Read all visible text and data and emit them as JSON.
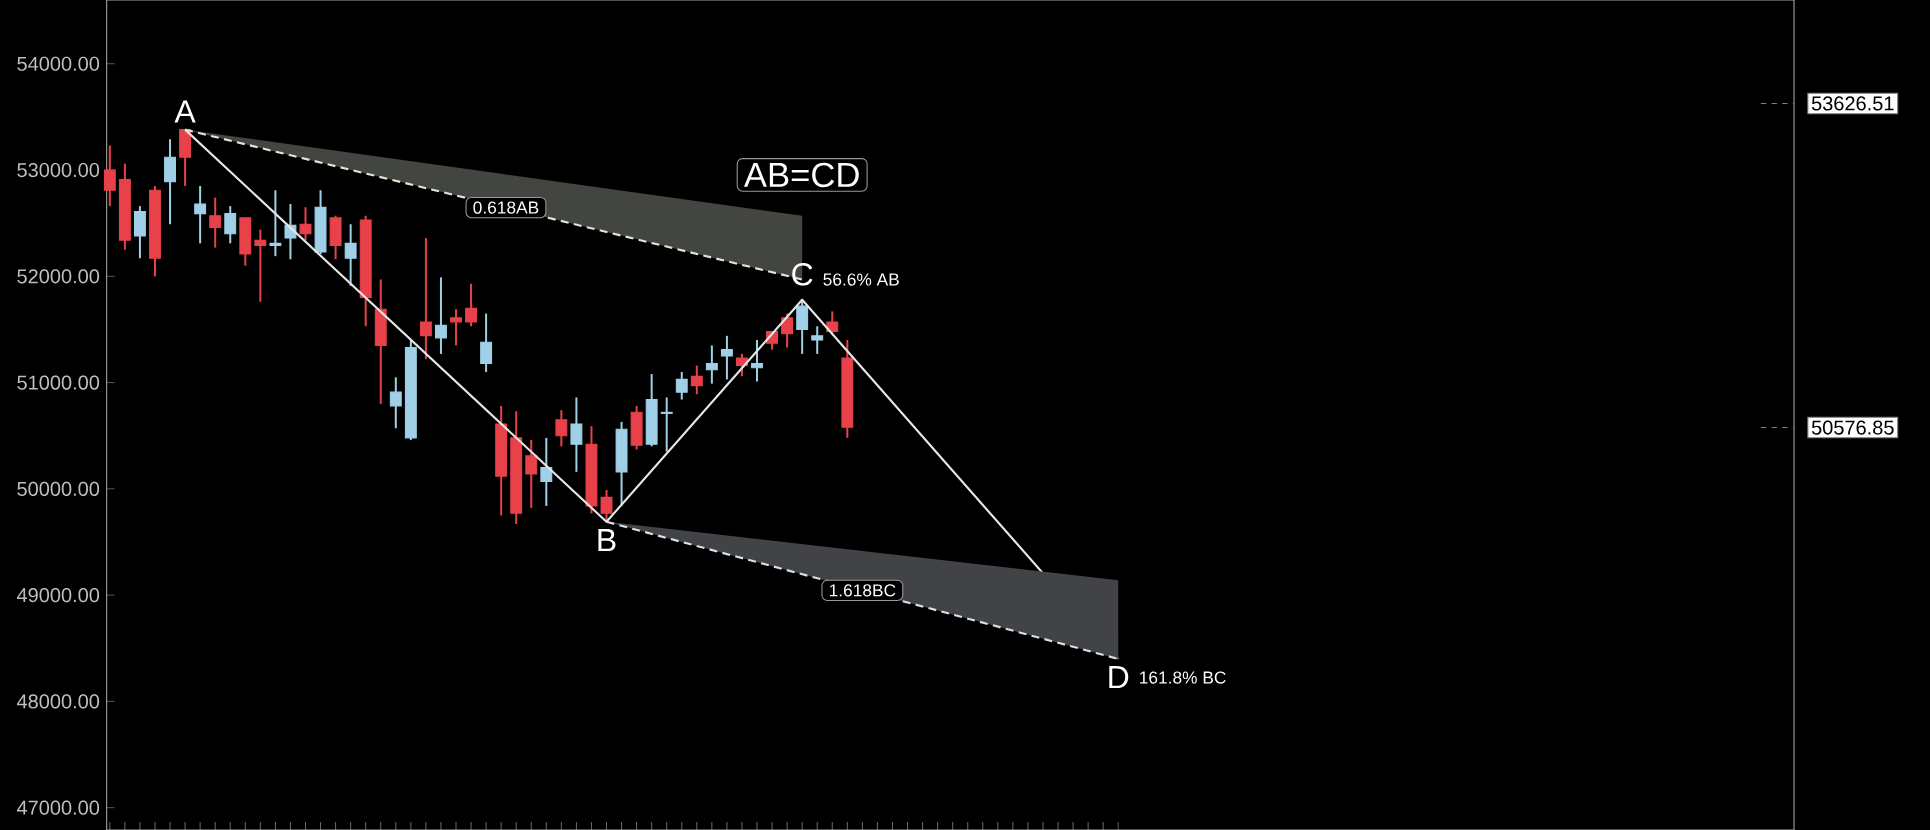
{
  "chart_data": {
    "type": "candlestick",
    "categories": [
      null,
      null,
      null,
      null,
      null,
      null,
      null,
      null,
      null,
      null,
      null,
      null,
      null,
      null,
      null,
      null,
      null,
      null,
      null,
      null,
      null,
      null,
      null,
      null,
      null,
      null,
      null,
      null,
      null,
      null,
      null,
      null,
      null,
      null,
      null,
      null,
      null,
      null,
      null,
      null,
      null,
      null,
      null,
      null,
      null,
      null,
      null,
      null,
      null,
      null,
      null,
      null,
      null,
      null,
      null,
      null,
      null,
      null,
      null,
      null,
      null,
      null,
      null,
      null,
      null,
      null,
      null,
      null
    ],
    "ohlc": [
      [
        53000,
        53230,
        52660,
        52810
      ],
      [
        52910,
        53060,
        52250,
        52340
      ],
      [
        52380,
        52660,
        52170,
        52610
      ],
      [
        52810,
        52850,
        52000,
        52170
      ],
      [
        52890,
        53290,
        52490,
        53120
      ],
      [
        53380,
        53380,
        52850,
        53120
      ],
      [
        52590,
        52850,
        52310,
        52680
      ],
      [
        52570,
        52740,
        52270,
        52460
      ],
      [
        52400,
        52660,
        52310,
        52590
      ],
      [
        52550,
        52550,
        52100,
        52210
      ],
      [
        52340,
        52440,
        51760,
        52290
      ],
      [
        52290,
        52810,
        52190,
        52310
      ],
      [
        52360,
        52680,
        52160,
        52480
      ],
      [
        52490,
        52650,
        52340,
        52400
      ],
      [
        52230,
        52810,
        52210,
        52650
      ],
      [
        52550,
        52570,
        52160,
        52290
      ],
      [
        52170,
        52490,
        51910,
        52310
      ],
      [
        52530,
        52570,
        51530,
        51800
      ],
      [
        51690,
        51970,
        50800,
        51350
      ],
      [
        50780,
        51050,
        50570,
        50910
      ],
      [
        50480,
        51400,
        50460,
        51330
      ],
      [
        51570,
        52360,
        51220,
        51440
      ],
      [
        51420,
        51990,
        51270,
        51540
      ],
      [
        51610,
        51690,
        51350,
        51570
      ],
      [
        51700,
        51930,
        51530,
        51570
      ],
      [
        51180,
        51650,
        51100,
        51380
      ],
      [
        50610,
        50780,
        49750,
        50120
      ],
      [
        50480,
        50730,
        49670,
        49770
      ],
      [
        50310,
        50460,
        49820,
        50140
      ],
      [
        50070,
        50480,
        49840,
        50200
      ],
      [
        50650,
        50740,
        50400,
        50500
      ],
      [
        50420,
        50860,
        50160,
        50610
      ],
      [
        50420,
        50590,
        49770,
        49840
      ],
      [
        49920,
        49990,
        49690,
        49770
      ],
      [
        50160,
        50630,
        49840,
        50560
      ],
      [
        50720,
        50780,
        50370,
        50410
      ],
      [
        50420,
        51080,
        50400,
        50840
      ],
      [
        50710,
        50860,
        50350,
        50720
      ],
      [
        50910,
        51100,
        50840,
        51030
      ],
      [
        51060,
        51160,
        50890,
        50970
      ],
      [
        51120,
        51350,
        50990,
        51180
      ],
      [
        51250,
        51440,
        51030,
        51310
      ],
      [
        51230,
        51270,
        51060,
        51160
      ],
      [
        51140,
        51400,
        51010,
        51180
      ],
      [
        51480,
        51480,
        51310,
        51370
      ],
      [
        51610,
        51650,
        51330,
        51460
      ],
      [
        51500,
        51780,
        51270,
        51720
      ],
      [
        51400,
        51530,
        51270,
        51440
      ],
      [
        51570,
        51670,
        51460,
        51480
      ],
      [
        51230,
        51400,
        50480,
        50580
      ],
      null,
      null,
      null,
      null,
      null,
      null,
      null,
      null,
      null,
      null,
      null,
      null,
      null,
      null,
      null,
      null,
      null,
      null
    ],
    "colors": [
      "#e8414a",
      "#e8414a",
      "#9fd0e8",
      "#e8414a",
      "#9fd0e8",
      "#e8414a",
      "#9fd0e8",
      "#e8414a",
      "#9fd0e8",
      "#e8414a",
      "#e8414a",
      "#9fd0e8",
      "#9fd0e8",
      "#e8414a",
      "#9fd0e8",
      "#e8414a",
      "#9fd0e8",
      "#e8414a",
      "#e8414a",
      "#9fd0e8",
      "#9fd0e8",
      "#e8414a",
      "#9fd0e8",
      "#e8414a",
      "#e8414a",
      "#9fd0e8",
      "#e8414a",
      "#e8414a",
      "#e8414a",
      "#9fd0e8",
      "#e8414a",
      "#9fd0e8",
      "#e8414a",
      "#e8414a",
      "#9fd0e8",
      "#e8414a",
      "#9fd0e8",
      "#9fd0e8",
      "#9fd0e8",
      "#e8414a",
      "#9fd0e8",
      "#9fd0e8",
      "#e8414a",
      "#9fd0e8",
      "#e8414a",
      "#e8414a",
      "#9fd0e8",
      "#9fd0e8",
      "#e8414a",
      "#e8414a",
      null,
      null,
      null,
      null,
      null,
      null,
      null,
      null,
      null,
      null,
      null,
      null,
      null,
      null,
      null,
      null,
      null,
      null
    ],
    "series": [
      {
        "type": "line",
        "color": "#e6e6e6",
        "line_style": "solid",
        "values": [
          null,
          null,
          null,
          null,
          null,
          53380,
          null,
          null,
          null,
          null,
          null,
          null,
          null,
          null,
          null,
          null,
          null,
          null,
          null,
          null,
          null,
          null,
          null,
          null,
          null,
          null,
          null,
          null,
          null,
          null,
          null,
          null,
          null,
          49690,
          null,
          null,
          null,
          null,
          null,
          null,
          null,
          null,
          null,
          null,
          null,
          null,
          51780,
          null,
          null,
          null,
          null,
          null,
          null,
          null,
          null,
          null,
          null,
          null,
          null,
          null,
          null,
          null,
          null,
          null,
          null,
          null,
          null,
          48400
        ]
      },
      {
        "type": "line",
        "color": "#dfe6d8",
        "line_style": "dashed",
        "values": [
          null,
          null,
          null,
          null,
          null,
          53380,
          null,
          null,
          null,
          null,
          null,
          null,
          null,
          null,
          null,
          null,
          null,
          null,
          null,
          null,
          null,
          null,
          null,
          null,
          null,
          null,
          null,
          null,
          null,
          null,
          null,
          null,
          null,
          null,
          null,
          null,
          null,
          null,
          null,
          null,
          null,
          null,
          null,
          null,
          null,
          null,
          51970,
          null,
          null,
          null,
          null,
          null,
          null,
          null,
          null,
          null,
          null,
          null,
          null,
          null,
          null,
          null,
          null,
          null,
          null,
          null,
          null,
          null
        ],
        "lower": [
          null,
          null,
          null,
          null,
          null,
          53380,
          null,
          null,
          null,
          null,
          null,
          null,
          null,
          null,
          null,
          null,
          null,
          null,
          null,
          null,
          null,
          null,
          null,
          null,
          null,
          null,
          null,
          null,
          null,
          null,
          null,
          null,
          null,
          null,
          null,
          null,
          null,
          null,
          null,
          null,
          null,
          null,
          null,
          null,
          null,
          null,
          51970,
          null,
          null,
          null,
          null,
          null,
          null,
          null,
          null,
          null,
          null,
          null,
          null,
          null,
          null,
          null,
          null,
          null,
          null,
          null,
          null,
          null
        ],
        "upper": [
          null,
          null,
          null,
          null,
          null,
          53380,
          null,
          null,
          null,
          null,
          null,
          null,
          null,
          null,
          null,
          null,
          null,
          null,
          null,
          null,
          null,
          null,
          null,
          null,
          null,
          null,
          null,
          null,
          null,
          null,
          null,
          null,
          null,
          null,
          null,
          null,
          null,
          null,
          null,
          null,
          null,
          null,
          null,
          null,
          null,
          null,
          52570,
          null,
          null,
          null,
          null,
          null,
          null,
          null,
          null,
          null,
          null,
          null,
          null,
          null,
          null,
          null,
          null,
          null,
          null,
          null,
          null,
          null
        ]
      },
      {
        "type": "line",
        "color": "#d8e0e8",
        "line_style": "dashed",
        "values": [
          null,
          null,
          null,
          null,
          null,
          null,
          null,
          null,
          null,
          null,
          null,
          null,
          null,
          null,
          null,
          null,
          null,
          null,
          null,
          null,
          null,
          null,
          null,
          null,
          null,
          null,
          null,
          null,
          null,
          null,
          null,
          null,
          null,
          49690,
          null,
          null,
          null,
          null,
          null,
          null,
          null,
          null,
          null,
          null,
          null,
          null,
          null,
          null,
          null,
          null,
          null,
          null,
          null,
          null,
          null,
          null,
          null,
          null,
          null,
          null,
          null,
          null,
          null,
          null,
          null,
          null,
          null,
          48400
        ],
        "lower": [
          null,
          null,
          null,
          null,
          null,
          null,
          null,
          null,
          null,
          null,
          null,
          null,
          null,
          null,
          null,
          null,
          null,
          null,
          null,
          null,
          null,
          null,
          null,
          null,
          null,
          null,
          null,
          null,
          null,
          null,
          null,
          null,
          null,
          49690,
          null,
          null,
          null,
          null,
          null,
          null,
          null,
          null,
          null,
          null,
          null,
          null,
          null,
          null,
          null,
          null,
          null,
          null,
          null,
          null,
          null,
          null,
          null,
          null,
          null,
          null,
          null,
          null,
          null,
          null,
          null,
          null,
          null,
          48400
        ],
        "upper": [
          null,
          null,
          null,
          null,
          null,
          null,
          null,
          null,
          null,
          null,
          null,
          null,
          null,
          null,
          null,
          null,
          null,
          null,
          null,
          null,
          null,
          null,
          null,
          null,
          null,
          null,
          null,
          null,
          null,
          null,
          null,
          null,
          null,
          49690,
          null,
          null,
          null,
          null,
          null,
          null,
          null,
          null,
          null,
          null,
          null,
          null,
          null,
          null,
          null,
          null,
          null,
          null,
          null,
          null,
          null,
          null,
          null,
          null,
          null,
          null,
          null,
          null,
          null,
          null,
          null,
          null,
          null,
          49140
        ]
      }
    ],
    "ylim": [
      46790,
      54600
    ],
    "yticks": [
      {
        "value": 47000,
        "label": "47000.00"
      },
      {
        "value": 48000,
        "label": "48000.00"
      },
      {
        "value": 49000,
        "label": "49000.00"
      },
      {
        "value": 50000,
        "label": "50000.00"
      },
      {
        "value": 51000,
        "label": "51000.00"
      },
      {
        "value": 52000,
        "label": "52000.00"
      },
      {
        "value": 53000,
        "label": "53000.00"
      },
      {
        "value": 54000,
        "label": "54000.00"
      }
    ],
    "tick_labels": "y",
    "ref_lines": [
      {
        "axis": "y",
        "value": 53626.51,
        "label": "53626.51"
      },
      {
        "axis": "y",
        "value": 50576.85,
        "label": "50576.85"
      }
    ],
    "annotations": [
      "A",
      "B",
      "C",
      "D",
      "AB=CD",
      "0.618AB",
      "1.618BC",
      "56.6% AB",
      "161.8% BC"
    ]
  }
}
